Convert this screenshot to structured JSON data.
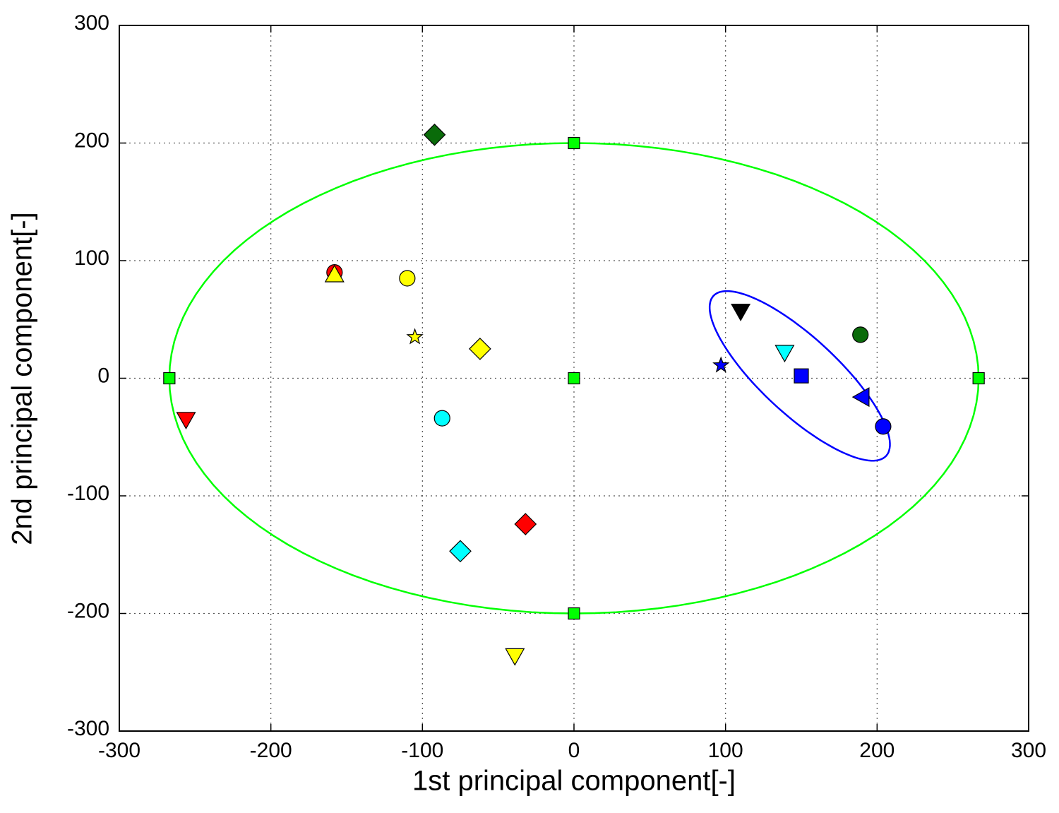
{
  "chart_data": {
    "type": "scatter",
    "xlabel": "1st principal component[-]",
    "ylabel": "2nd principal component[-]",
    "xlim": [
      -300,
      300
    ],
    "ylim": [
      -300,
      300
    ],
    "xticks": [
      -300,
      -200,
      -100,
      0,
      100,
      200,
      300
    ],
    "yticks": [
      -300,
      -200,
      -100,
      0,
      100,
      200,
      300
    ],
    "grid": true,
    "series": [
      {
        "marker": "diamond",
        "color": "#0a6b0a",
        "x": [
          -92
        ],
        "values": [
          207
        ]
      },
      {
        "marker": "circle",
        "color": "#ff0000",
        "x": [
          -158
        ],
        "values": [
          90
        ]
      },
      {
        "marker": "triangle-up",
        "color": "#ffff00",
        "x": [
          -158
        ],
        "values": [
          88
        ]
      },
      {
        "marker": "circle",
        "color": "#ffff00",
        "x": [
          -110
        ],
        "values": [
          85
        ]
      },
      {
        "marker": "star",
        "color": "#ffff00",
        "x": [
          -105
        ],
        "values": [
          35
        ]
      },
      {
        "marker": "diamond",
        "color": "#ffff00",
        "x": [
          -62
        ],
        "values": [
          25
        ]
      },
      {
        "marker": "circle",
        "color": "#00ffff",
        "x": [
          -87
        ],
        "values": [
          -34
        ]
      },
      {
        "marker": "triangle-down",
        "color": "#ff0000",
        "x": [
          -256
        ],
        "values": [
          -35
        ]
      },
      {
        "marker": "diamond",
        "color": "#ff0000",
        "x": [
          -32
        ],
        "values": [
          -124
        ]
      },
      {
        "marker": "diamond",
        "color": "#00ffff",
        "x": [
          -75
        ],
        "values": [
          -147
        ]
      },
      {
        "marker": "triangle-down",
        "color": "#ffff00",
        "x": [
          -39
        ],
        "values": [
          -236
        ]
      },
      {
        "marker": "triangle-down",
        "color": "#000000",
        "x": [
          110
        ],
        "values": [
          57
        ]
      },
      {
        "marker": "circle",
        "color": "#0a6b0a",
        "x": [
          189
        ],
        "values": [
          37
        ]
      },
      {
        "marker": "triangle-down",
        "color": "#00ffff",
        "x": [
          139
        ],
        "values": [
          22
        ]
      },
      {
        "marker": "star",
        "color": "#0000ff",
        "x": [
          97
        ],
        "values": [
          11
        ]
      },
      {
        "marker": "square",
        "color": "#0000ff",
        "x": [
          150
        ],
        "values": [
          2
        ]
      },
      {
        "marker": "triangle-left",
        "color": "#0000ff",
        "x": [
          190
        ],
        "values": [
          -16
        ]
      },
      {
        "marker": "circle",
        "color": "#0000ff",
        "x": [
          204
        ],
        "values": [
          -41
        ]
      },
      {
        "marker": "square",
        "color": "#00ff00",
        "x": [
          0,
          0,
          0,
          -267,
          267
        ],
        "values": [
          200,
          0,
          -200,
          0,
          0
        ]
      }
    ],
    "ellipses": [
      {
        "color": "#00ff00",
        "center": [
          0,
          0
        ],
        "axis1": [
          267,
          0
        ],
        "axis2": [
          0,
          200
        ]
      },
      {
        "color": "#0000ff",
        "center": [
          149,
          2
        ],
        "axis1": [
          57,
          -68
        ],
        "axis2": [
          17,
          24
        ]
      }
    ]
  }
}
